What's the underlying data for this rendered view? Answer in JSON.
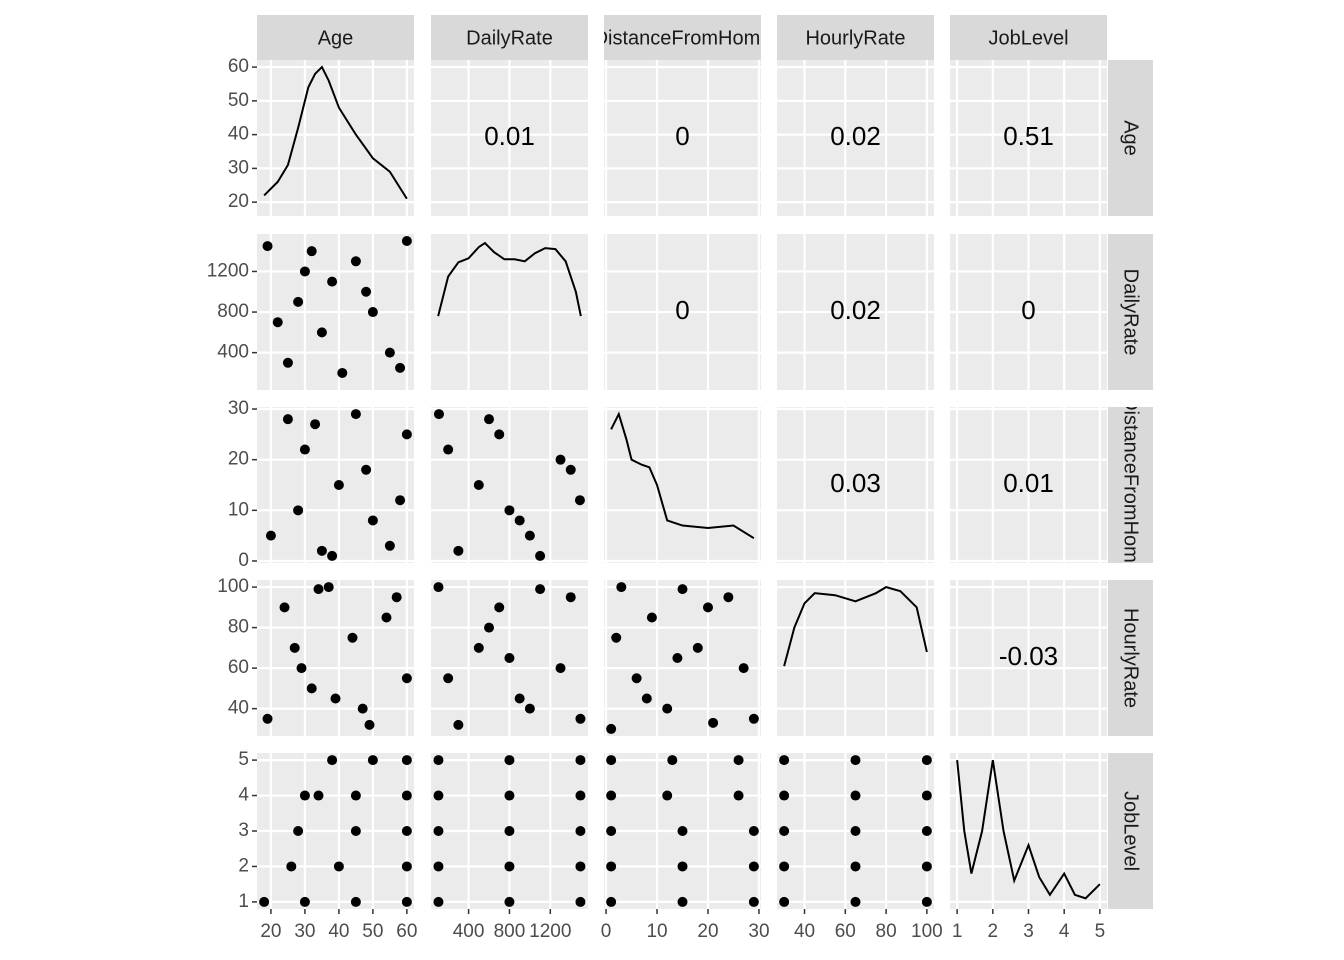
{
  "chart_data": {
    "type": "pairs",
    "variables": [
      "Age",
      "DailyRate",
      "DistanceFromHome",
      "HourlyRate",
      "JobLevel"
    ],
    "axes": [
      {
        "lim": [
          15.9,
          62.1
        ],
        "ticks": [
          20,
          30,
          40,
          50,
          60
        ]
      },
      {
        "lim": [
          32,
          1569
        ],
        "ticks": [
          400,
          800,
          1200
        ]
      },
      {
        "lim": [
          -0.4,
          30.4
        ],
        "ticks": [
          0,
          10,
          20,
          30
        ]
      },
      {
        "lim": [
          26.5,
          103.5
        ],
        "ticks": [
          40,
          60,
          80,
          100
        ]
      },
      {
        "lim": [
          0.8,
          5.2
        ],
        "ticks": [
          1,
          2,
          3,
          4,
          5
        ]
      }
    ],
    "cells": [
      [
        {
          "type": "density",
          "x": [
            18,
            22,
            25,
            28,
            31,
            33,
            35,
            37,
            40,
            45,
            50,
            55,
            60
          ],
          "y": [
            22,
            26,
            31,
            42,
            54,
            58,
            60,
            56,
            48,
            40,
            33,
            29,
            21
          ]
        },
        {
          "type": "correlation",
          "value": 0.01
        },
        {
          "type": "correlation",
          "value": 0
        },
        {
          "type": "correlation",
          "value": 0.02
        },
        {
          "type": "correlation",
          "value": 0.51
        }
      ],
      [
        {
          "type": "scatter",
          "x": [
            19,
            25,
            28,
            32,
            35,
            38,
            41,
            45,
            50,
            55,
            60,
            22,
            30,
            48,
            58
          ],
          "y": [
            1450,
            300,
            900,
            1400,
            600,
            1100,
            200,
            1300,
            800,
            400,
            1500,
            700,
            1200,
            1000,
            250
          ]
        },
        {
          "type": "density",
          "x": [
            102,
            200,
            300,
            400,
            500,
            560,
            650,
            750,
            850,
            950,
            1050,
            1150,
            1250,
            1350,
            1450,
            1499
          ],
          "y": [
            760,
            1150,
            1290,
            1330,
            1440,
            1480,
            1390,
            1320,
            1320,
            1300,
            1380,
            1430,
            1420,
            1300,
            1000,
            760
          ]
        },
        {
          "type": "correlation",
          "value": 0
        },
        {
          "type": "correlation",
          "value": 0.02
        },
        {
          "type": "correlation",
          "value": 0
        }
      ],
      [
        {
          "type": "scatter",
          "x": [
            20,
            25,
            30,
            35,
            40,
            45,
            50,
            55,
            60,
            28,
            38,
            48,
            58,
            33
          ],
          "y": [
            5,
            28,
            22,
            2,
            15,
            29,
            8,
            3,
            25,
            10,
            1,
            18,
            12,
            27
          ]
        },
        {
          "type": "scatter",
          "x": [
            110,
            300,
            500,
            700,
            900,
            1100,
            1300,
            1490,
            200,
            600,
            1000,
            1400,
            800
          ],
          "y": [
            29,
            2,
            15,
            25,
            8,
            1,
            20,
            12,
            22,
            28,
            5,
            18,
            10
          ]
        },
        {
          "type": "density",
          "x": [
            1,
            2.5,
            4,
            5,
            7,
            8.5,
            10,
            12,
            15,
            20,
            25,
            29
          ],
          "y": [
            26,
            29,
            24,
            20,
            19,
            18.5,
            15,
            8,
            7,
            6.5,
            7,
            4.5
          ]
        },
        {
          "type": "correlation",
          "value": 0.03
        },
        {
          "type": "correlation",
          "value": 0.01
        }
      ],
      [
        {
          "type": "scatter",
          "x": [
            19,
            24,
            29,
            34,
            39,
            44,
            49,
            54,
            60,
            27,
            37,
            47,
            57,
            32
          ],
          "y": [
            35,
            90,
            60,
            99,
            45,
            75,
            32,
            85,
            55,
            70,
            100,
            40,
            95,
            50
          ]
        },
        {
          "type": "scatter",
          "x": [
            105,
            300,
            500,
            700,
            900,
            1100,
            1300,
            1495,
            200,
            600,
            1000,
            1400,
            800
          ],
          "y": [
            100,
            32,
            70,
            90,
            45,
            99,
            60,
            35,
            55,
            80,
            40,
            95,
            65
          ]
        },
        {
          "type": "scatter",
          "x": [
            1,
            3,
            6,
            9,
            12,
            15,
            18,
            21,
            24,
            27,
            29,
            2,
            8,
            14,
            20
          ],
          "y": [
            30,
            100,
            55,
            85,
            40,
            99,
            70,
            33,
            95,
            60,
            35,
            75,
            45,
            65,
            90
          ]
        },
        {
          "type": "density",
          "x": [
            30,
            35,
            40,
            45,
            55,
            65,
            75,
            80,
            87,
            95,
            100
          ],
          "y": [
            61,
            80,
            92,
            97,
            96,
            93,
            97,
            100,
            98,
            90,
            68
          ]
        },
        {
          "type": "correlation",
          "value": -0.03
        }
      ],
      [
        {
          "type": "scatter",
          "x": [
            18,
            30,
            45,
            60,
            26,
            40,
            60,
            28,
            45,
            60,
            30,
            34,
            45,
            60,
            38,
            50,
            60
          ],
          "y": [
            1,
            1,
            1,
            1,
            2,
            2,
            2,
            3,
            3,
            3,
            4,
            4,
            4,
            4,
            5,
            5,
            5
          ]
        },
        {
          "type": "scatter",
          "x": [
            105,
            800,
            1495,
            105,
            800,
            1495,
            105,
            800,
            1495,
            105,
            800,
            1495,
            105,
            800,
            1495
          ],
          "y": [
            1,
            1,
            1,
            2,
            2,
            2,
            3,
            3,
            3,
            4,
            4,
            4,
            5,
            5,
            5
          ]
        },
        {
          "type": "scatter",
          "x": [
            1,
            15,
            29,
            1,
            15,
            29,
            1,
            15,
            29,
            1,
            12,
            26,
            1,
            13,
            26
          ],
          "y": [
            1,
            1,
            1,
            2,
            2,
            2,
            3,
            3,
            3,
            4,
            4,
            4,
            5,
            5,
            5
          ]
        },
        {
          "type": "scatter",
          "x": [
            30,
            65,
            100,
            30,
            65,
            100,
            30,
            65,
            100,
            30,
            65,
            100,
            30,
            65,
            100
          ],
          "y": [
            1,
            1,
            1,
            2,
            2,
            2,
            3,
            3,
            3,
            4,
            4,
            4,
            5,
            5,
            5
          ]
        },
        {
          "type": "density",
          "x": [
            1,
            1.2,
            1.4,
            1.7,
            2,
            2.3,
            2.6,
            3,
            3.3,
            3.6,
            4,
            4.3,
            4.6,
            5
          ],
          "y": [
            5,
            3,
            1.8,
            3,
            5,
            3,
            1.6,
            2.6,
            1.7,
            1.2,
            1.8,
            1.2,
            1.1,
            1.5
          ]
        }
      ]
    ]
  }
}
